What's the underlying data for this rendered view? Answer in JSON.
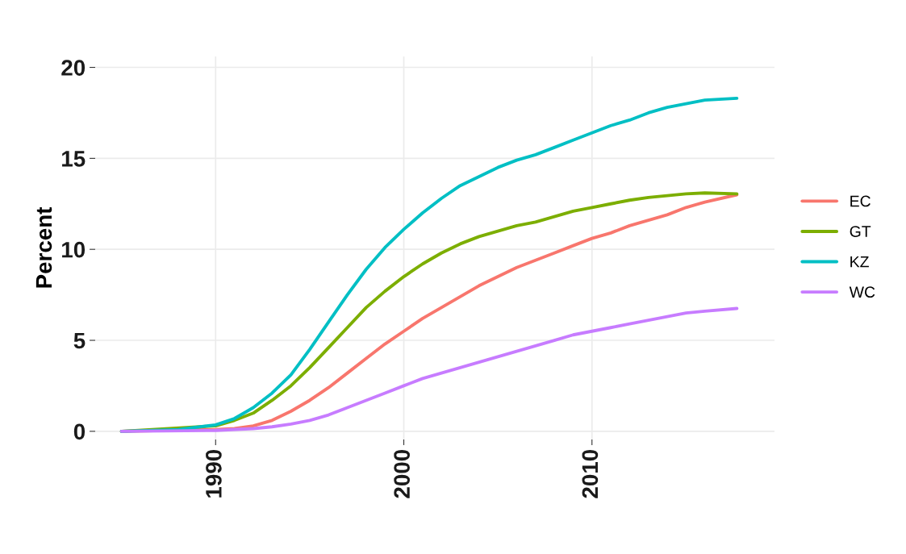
{
  "chart_data": {
    "type": "line",
    "ylabel": "Percent",
    "xlim": [
      1983.6,
      2019.7
    ],
    "ylim": [
      -0.45,
      20.6
    ],
    "xticks": [
      1990,
      2000,
      2010
    ],
    "yticks": [
      0,
      5,
      10,
      15,
      20
    ],
    "grid": true,
    "legend": "right",
    "marker": "none",
    "line_style": "solid",
    "series": [
      {
        "name": "EC",
        "color": "#f8766d",
        "x": [
          1985,
          1990,
          1991,
          1992,
          1993,
          1994,
          1995,
          1996,
          1997,
          1998,
          1999,
          2000,
          2001,
          2002,
          2003,
          2004,
          2005,
          2006,
          2007,
          2008,
          2009,
          2010,
          2011,
          2012,
          2013,
          2014,
          2015,
          2016,
          2017.7
        ],
        "values": [
          0,
          0.1,
          0.15,
          0.3,
          0.6,
          1.1,
          1.7,
          2.4,
          3.2,
          4.0,
          4.8,
          5.5,
          6.2,
          6.8,
          7.4,
          8.0,
          8.5,
          9.0,
          9.4,
          9.8,
          10.2,
          10.6,
          10.9,
          11.3,
          11.6,
          11.9,
          12.3,
          12.6,
          13.0
        ]
      },
      {
        "name": "GT",
        "color": "#7cae00",
        "x": [
          1985,
          1990,
          1991,
          1992,
          1993,
          1994,
          1995,
          1996,
          1997,
          1998,
          1999,
          2000,
          2001,
          2002,
          2003,
          2004,
          2005,
          2006,
          2007,
          2008,
          2009,
          2010,
          2011,
          2012,
          2013,
          2014,
          2015,
          2016,
          2017.7
        ],
        "values": [
          0,
          0.3,
          0.6,
          1.0,
          1.7,
          2.5,
          3.5,
          4.6,
          5.7,
          6.8,
          7.7,
          8.5,
          9.2,
          9.8,
          10.3,
          10.7,
          11.0,
          11.3,
          11.5,
          11.8,
          12.1,
          12.3,
          12.5,
          12.7,
          12.85,
          12.95,
          13.05,
          13.1,
          13.05
        ]
      },
      {
        "name": "KZ",
        "color": "#00bfc4",
        "x": [
          1985,
          1988,
          1990,
          1991,
          1992,
          1993,
          1994,
          1995,
          1996,
          1997,
          1998,
          1999,
          2000,
          2001,
          2002,
          2003,
          2004,
          2005,
          2006,
          2007,
          2008,
          2009,
          2010,
          2011,
          2012,
          2013,
          2014,
          2015,
          2016,
          2017.7
        ],
        "values": [
          0,
          0.1,
          0.35,
          0.7,
          1.3,
          2.1,
          3.1,
          4.5,
          6.0,
          7.5,
          8.9,
          10.1,
          11.1,
          12.0,
          12.8,
          13.5,
          14.0,
          14.5,
          14.9,
          15.2,
          15.6,
          16.0,
          16.4,
          16.8,
          17.1,
          17.5,
          17.8,
          18.0,
          18.2,
          18.3
        ]
      },
      {
        "name": "WC",
        "color": "#c77cff",
        "x": [
          1985,
          1990,
          1992,
          1993,
          1994,
          1995,
          1996,
          1997,
          1998,
          1999,
          2000,
          2001,
          2002,
          2003,
          2004,
          2005,
          2006,
          2007,
          2008,
          2009,
          2010,
          2011,
          2012,
          2013,
          2014,
          2015,
          2016,
          2017.7
        ],
        "values": [
          0,
          0.05,
          0.15,
          0.25,
          0.4,
          0.6,
          0.9,
          1.3,
          1.7,
          2.1,
          2.5,
          2.9,
          3.2,
          3.5,
          3.8,
          4.1,
          4.4,
          4.7,
          5.0,
          5.3,
          5.5,
          5.7,
          5.9,
          6.1,
          6.3,
          6.5,
          6.6,
          6.75
        ]
      }
    ]
  }
}
